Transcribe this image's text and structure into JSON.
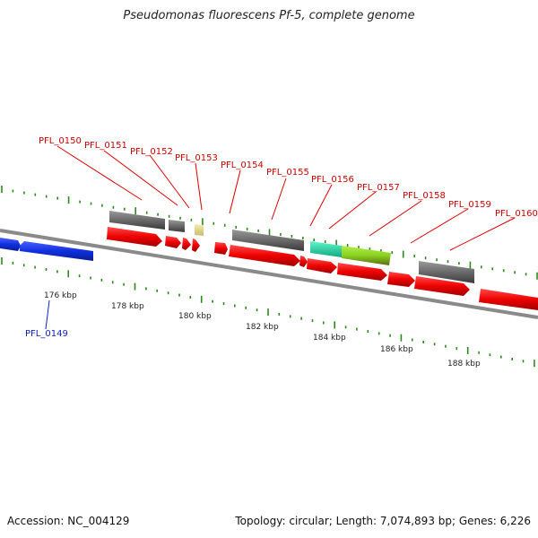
{
  "title": "Pseudomonas fluorescens Pf-5, complete genome",
  "footer": {
    "accession": "Accession: NC_004129",
    "stats": "Topology: circular; Length: 7,074,893 bp; Genes: 6,226"
  },
  "colors": {
    "backbone": "#888888",
    "tick": "#2a8a1a",
    "gene_red": "#ee0000",
    "gene_blue": "#1030e0",
    "gene_gray": "#707070",
    "gene_pale": "#e6dc8c",
    "gene_cyan": "#20e0b0",
    "gene_lime": "#8ad21e",
    "label_red": "#cc0000",
    "label_blue": "#1020c0"
  },
  "scale_labels": [
    "176 kbp",
    "178 kbp",
    "180 kbp",
    "182 kbp",
    "184 kbp",
    "186 kbp",
    "188 kbp"
  ],
  "gene_labels_top": [
    "PFL_0150",
    "PFL_0151",
    "PFL_0152",
    "PFL_0153",
    "PFL_0154",
    "PFL_0155",
    "PFL_0156",
    "PFL_0157",
    "PFL_0158",
    "PFL_0159",
    "PFL_0160"
  ],
  "gene_label_bottom": "PFL_0149"
}
